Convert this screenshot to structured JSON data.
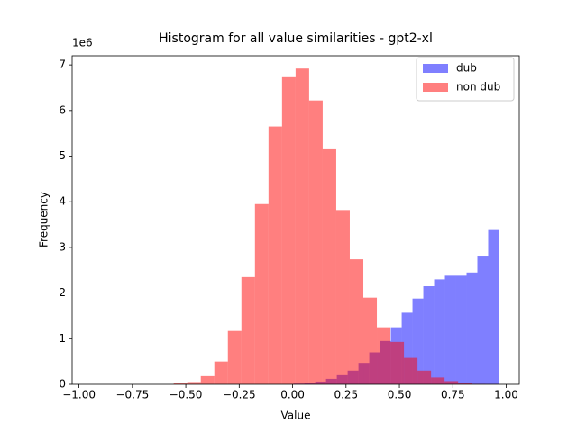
{
  "chart_data": {
    "type": "histogram",
    "title": "Histogram for all value similarities - gpt2-xl",
    "xlabel": "Value",
    "ylabel": "Frequency",
    "y_offset_label": "1e6",
    "series": [
      {
        "name": "dub",
        "color": "#0000ff",
        "opacity": 0.5,
        "bins": [
          -0.552,
          -0.5014,
          -0.4508,
          -0.4002,
          -0.3496,
          -0.299,
          -0.2484,
          -0.1978,
          -0.1472,
          -0.0966,
          -0.046,
          0.0046,
          0.0552,
          0.1058,
          0.1564,
          0.207,
          0.2576,
          0.3082,
          0.3588,
          0.4094,
          0.46,
          0.5106,
          0.5612,
          0.6118,
          0.6624,
          0.713,
          0.7636,
          0.8142,
          0.8648,
          0.9154,
          0.966
        ],
        "values": [
          0,
          0,
          0,
          0,
          0,
          0,
          0,
          0,
          0,
          0,
          0,
          0.015,
          0.03,
          0.06,
          0.12,
          0.2,
          0.3,
          0.47,
          0.7,
          0.95,
          1.25,
          1.57,
          1.88,
          2.15,
          2.3,
          2.38,
          2.38,
          2.45,
          2.82,
          3.38
        ]
      },
      {
        "name": "non dub",
        "color": "#ff0000",
        "opacity": 0.5,
        "bins": [
          -0.937,
          -0.8736,
          -0.8102,
          -0.7468,
          -0.6834,
          -0.62,
          -0.5566,
          -0.4932,
          -0.4298,
          -0.3664,
          -0.303,
          -0.2396,
          -0.1762,
          -0.1128,
          -0.0494,
          0.014,
          0.0774,
          0.1408,
          0.2042,
          0.2676,
          0.331,
          0.3944,
          0.4578,
          0.5212,
          0.5846,
          0.648,
          0.7114,
          0.7748,
          0.8382,
          0.9016,
          0.965
        ],
        "values": [
          0,
          0,
          0,
          0,
          0,
          0,
          0.02,
          0.05,
          0.18,
          0.5,
          1.17,
          2.35,
          3.95,
          5.65,
          6.73,
          6.92,
          6.22,
          5.15,
          3.82,
          2.74,
          1.9,
          1.25,
          0.93,
          0.58,
          0.3,
          0.15,
          0.07,
          0.03,
          0.01,
          0.005
        ]
      }
    ],
    "xlim": [
      -1.032,
      1.061
    ],
    "xticks": [
      {
        "value": -1,
        "label": "−1.00"
      },
      {
        "value": -0.75,
        "label": "−0.75"
      },
      {
        "value": -0.5,
        "label": "−0.50"
      },
      {
        "value": -0.25,
        "label": "−0.25"
      },
      {
        "value": 0,
        "label": "0.00"
      },
      {
        "value": 0.25,
        "label": "0.25"
      },
      {
        "value": 0.5,
        "label": "0.50"
      },
      {
        "value": 0.75,
        "label": "0.75"
      },
      {
        "value": 1,
        "label": "1.00"
      }
    ],
    "ylim": [
      0,
      7.2
    ],
    "yticks": [
      0,
      1,
      2,
      3,
      4,
      5,
      6,
      7
    ],
    "legend": "upper right"
  }
}
